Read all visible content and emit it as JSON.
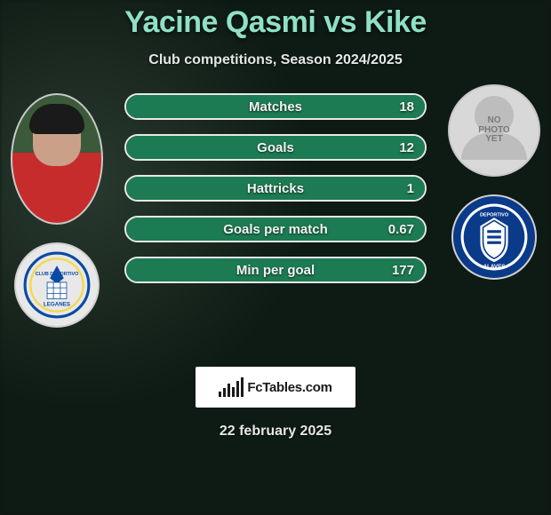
{
  "title": "Yacine Qasmi vs Kike",
  "subtitle": "Club competitions, Season 2024/2025",
  "date": "22 february 2025",
  "brand": "FcTables.com",
  "title_color": "#8fe0c6",
  "text_color": "#e6e6e6",
  "background_color": "#0e1a14",
  "player1": {
    "name": "Yacine Qasmi",
    "club": "Leganes",
    "club_colors": {
      "primary": "#0a4aa5",
      "accent": "#f5d84a",
      "bg": "#e8e8e8"
    },
    "fill_color": "#1c7b52"
  },
  "player2": {
    "name": "Kike",
    "club": "Alaves",
    "no_photo_text": "NO\nPHOTO\nYET",
    "club_colors": {
      "primary": "#0a3a8a",
      "accent": "#ffffff"
    },
    "fill_color": "#1c7b52"
  },
  "bar_style": {
    "height": 30,
    "border_color": "#e8e8e8",
    "border_radius": 15,
    "label_fontsize": 15,
    "label_color": "#f4f4f4"
  },
  "metrics": [
    {
      "label": "Matches",
      "p1_text": "",
      "p2_text": "18",
      "p1": 0,
      "p2": 18,
      "p1_pct": 0,
      "p2_pct": 100
    },
    {
      "label": "Goals",
      "p1_text": "",
      "p2_text": "12",
      "p1": 0,
      "p2": 12,
      "p1_pct": 0,
      "p2_pct": 100
    },
    {
      "label": "Hattricks",
      "p1_text": "",
      "p2_text": "1",
      "p1": 0,
      "p2": 1,
      "p1_pct": 0,
      "p2_pct": 100
    },
    {
      "label": "Goals per match",
      "p1_text": "",
      "p2_text": "0.67",
      "p1": 0,
      "p2": 0.67,
      "p1_pct": 0,
      "p2_pct": 100
    },
    {
      "label": "Min per goal",
      "p1_text": "",
      "p2_text": "177",
      "p1": 0,
      "p2": 177,
      "p1_pct": 0,
      "p2_pct": 100
    }
  ]
}
